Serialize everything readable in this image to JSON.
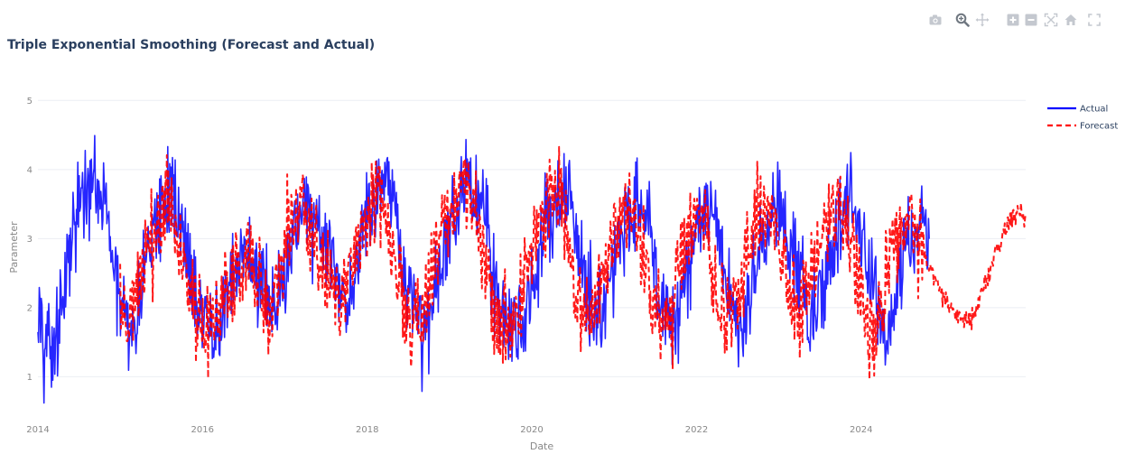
{
  "toolbar": {
    "icons": [
      "camera-icon",
      "zoom-icon",
      "pan-icon",
      "zoom-in-icon",
      "zoom-out-icon",
      "autoscale-icon",
      "reset-axes-icon",
      "fullscreen-icon"
    ]
  },
  "chart_data": {
    "type": "line",
    "title": "Triple Exponential Smoothing (Forecast and Actual)",
    "xlabel": "Date",
    "ylabel": "Parameter",
    "xlim": [
      "2014-01-01",
      "2025-12-31"
    ],
    "ylim": [
      0.6,
      5.2
    ],
    "x_ticks": [
      "2014",
      "2016",
      "2018",
      "2020",
      "2022",
      "2024"
    ],
    "y_ticks": [
      1,
      2,
      3,
      4,
      5
    ],
    "grid": true,
    "legend": "top-right",
    "series": [
      {
        "name": "Actual",
        "color": "#0000ff",
        "dash": "solid",
        "x_start": "2014-01-01",
        "x_end": "2024-10-31",
        "values": [
          2.2,
          1.6,
          1.5,
          1.7,
          2.4,
          3.0,
          3.4,
          3.6,
          3.8,
          3.5,
          3.2,
          2.2,
          2.0,
          1.6,
          1.8,
          2.6,
          3.0,
          3.2,
          3.5,
          3.8,
          3.4,
          3.0,
          2.4,
          1.9,
          1.7,
          1.6,
          1.8,
          2.2,
          2.5,
          2.6,
          2.8,
          2.7,
          2.4,
          2.1,
          2.0,
          2.3,
          3.0,
          3.2,
          3.5,
          3.3,
          3.0,
          2.8,
          2.5,
          2.2,
          2.0,
          2.4,
          3.0,
          3.4,
          3.5,
          3.7,
          3.6,
          3.2,
          2.6,
          2.2,
          1.8,
          1.6,
          2.0,
          2.5,
          2.9,
          3.3,
          3.6,
          3.9,
          3.8,
          3.6,
          3.2,
          2.4,
          1.9,
          1.7,
          1.6,
          1.8,
          2.2,
          2.6,
          3.0,
          3.3,
          3.6,
          3.7,
          3.6,
          2.8,
          2.3,
          2.0,
          1.9,
          2.1,
          2.6,
          3.0,
          3.3,
          3.5,
          3.6,
          3.2,
          2.4,
          2.0,
          1.7,
          1.8,
          2.2,
          2.7,
          3.0,
          3.4,
          3.5,
          3.0,
          2.4,
          2.0,
          1.8,
          1.9,
          2.5,
          2.9,
          3.2,
          3.6,
          3.4,
          3.1,
          2.6,
          2.2,
          1.8,
          2.0,
          2.4,
          2.8,
          3.1,
          3.5,
          3.6,
          3.2,
          2.8,
          2.2,
          1.8,
          1.6,
          2.0,
          2.6,
          3.0,
          3.2,
          3.3,
          2.8
        ]
      },
      {
        "name": "Forecast",
        "color": "#ff0000",
        "dash": "dash",
        "x_start": "2015-01-01",
        "x_end": "2025-12-31",
        "values": [
          2.0,
          1.7,
          1.8,
          2.5,
          2.9,
          3.1,
          3.4,
          3.6,
          3.3,
          2.9,
          2.3,
          1.9,
          1.7,
          1.7,
          1.9,
          2.2,
          2.4,
          2.5,
          2.7,
          2.6,
          2.4,
          2.1,
          2.0,
          2.3,
          2.9,
          3.2,
          3.4,
          3.2,
          3.0,
          2.8,
          2.5,
          2.2,
          2.0,
          2.4,
          2.9,
          3.3,
          3.4,
          3.6,
          3.5,
          3.2,
          2.6,
          2.2,
          1.8,
          1.7,
          2.0,
          2.5,
          2.9,
          3.3,
          3.5,
          3.8,
          3.7,
          3.5,
          3.1,
          2.4,
          1.9,
          1.7,
          1.7,
          1.8,
          2.2,
          2.6,
          3.0,
          3.3,
          3.5,
          3.6,
          3.5,
          2.8,
          2.3,
          2.0,
          1.9,
          2.1,
          2.6,
          3.0,
          3.2,
          3.4,
          3.5,
          3.1,
          2.4,
          2.0,
          1.8,
          1.8,
          2.2,
          2.7,
          3.0,
          3.3,
          3.4,
          3.0,
          2.4,
          2.0,
          1.8,
          1.9,
          2.5,
          2.9,
          3.2,
          3.5,
          3.4,
          3.0,
          2.6,
          2.2,
          1.9,
          2.0,
          2.4,
          2.8,
          3.1,
          3.4,
          3.5,
          3.2,
          2.8,
          2.3,
          1.9,
          1.7,
          2.0,
          2.6,
          2.9,
          3.1,
          3.2,
          3.1,
          2.9,
          2.6,
          2.4,
          2.2,
          2.0,
          1.9,
          1.8,
          1.8,
          2.0,
          2.3,
          2.6,
          2.9,
          3.1,
          3.3,
          3.4,
          3.3
        ]
      }
    ]
  }
}
